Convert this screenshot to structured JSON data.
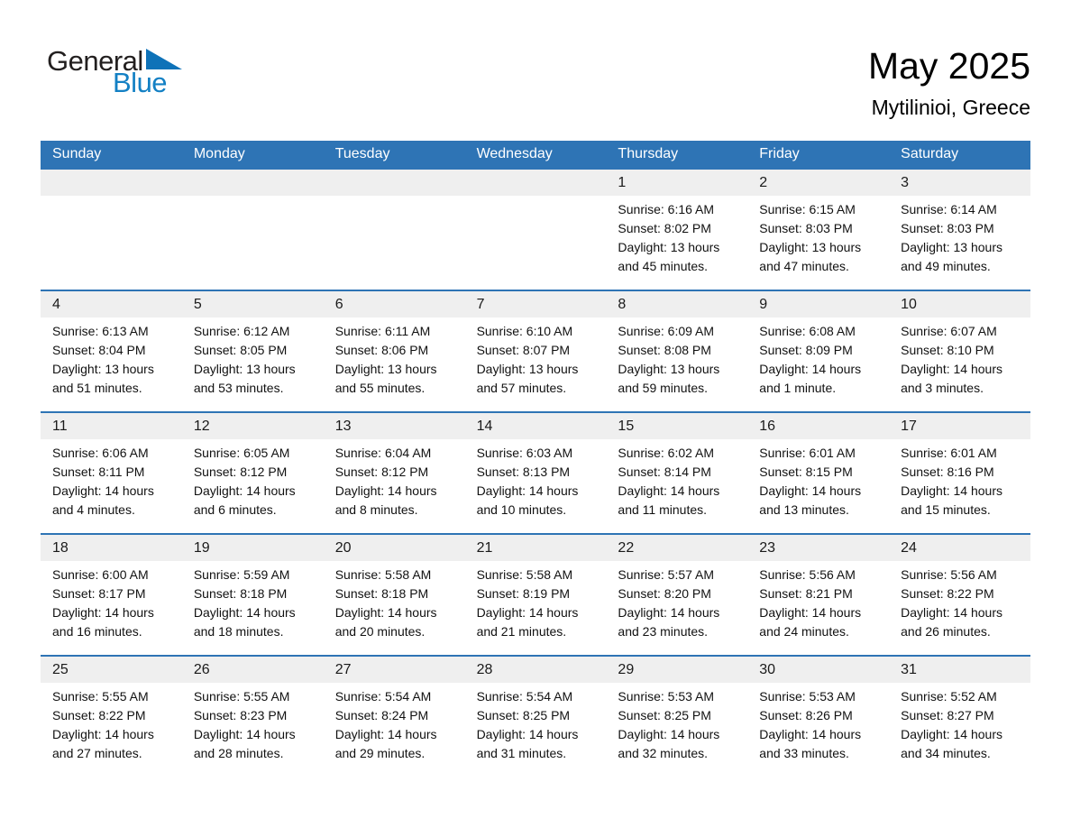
{
  "logo": {
    "text_black": "General",
    "text_blue": "Blue"
  },
  "title": "May 2025",
  "subtitle": "Mytilinioi, Greece",
  "weekdays": [
    "Sunday",
    "Monday",
    "Tuesday",
    "Wednesday",
    "Thursday",
    "Friday",
    "Saturday"
  ],
  "colors": {
    "header_blue": "#2E74B5",
    "row_line_blue": "#2E74B5",
    "band_gray": "#EFEFEF",
    "logo_blue": "#1380C4",
    "logo_dark": "#221F1F"
  },
  "weeks": [
    [
      null,
      null,
      null,
      null,
      {
        "day": "1",
        "sunrise": "Sunrise: 6:16 AM",
        "sunset": "Sunset: 8:02 PM",
        "daylight1": "Daylight: 13 hours",
        "daylight2": "and 45 minutes."
      },
      {
        "day": "2",
        "sunrise": "Sunrise: 6:15 AM",
        "sunset": "Sunset: 8:03 PM",
        "daylight1": "Daylight: 13 hours",
        "daylight2": "and 47 minutes."
      },
      {
        "day": "3",
        "sunrise": "Sunrise: 6:14 AM",
        "sunset": "Sunset: 8:03 PM",
        "daylight1": "Daylight: 13 hours",
        "daylight2": "and 49 minutes."
      }
    ],
    [
      {
        "day": "4",
        "sunrise": "Sunrise: 6:13 AM",
        "sunset": "Sunset: 8:04 PM",
        "daylight1": "Daylight: 13 hours",
        "daylight2": "and 51 minutes."
      },
      {
        "day": "5",
        "sunrise": "Sunrise: 6:12 AM",
        "sunset": "Sunset: 8:05 PM",
        "daylight1": "Daylight: 13 hours",
        "daylight2": "and 53 minutes."
      },
      {
        "day": "6",
        "sunrise": "Sunrise: 6:11 AM",
        "sunset": "Sunset: 8:06 PM",
        "daylight1": "Daylight: 13 hours",
        "daylight2": "and 55 minutes."
      },
      {
        "day": "7",
        "sunrise": "Sunrise: 6:10 AM",
        "sunset": "Sunset: 8:07 PM",
        "daylight1": "Daylight: 13 hours",
        "daylight2": "and 57 minutes."
      },
      {
        "day": "8",
        "sunrise": "Sunrise: 6:09 AM",
        "sunset": "Sunset: 8:08 PM",
        "daylight1": "Daylight: 13 hours",
        "daylight2": "and 59 minutes."
      },
      {
        "day": "9",
        "sunrise": "Sunrise: 6:08 AM",
        "sunset": "Sunset: 8:09 PM",
        "daylight1": "Daylight: 14 hours",
        "daylight2": "and 1 minute."
      },
      {
        "day": "10",
        "sunrise": "Sunrise: 6:07 AM",
        "sunset": "Sunset: 8:10 PM",
        "daylight1": "Daylight: 14 hours",
        "daylight2": "and 3 minutes."
      }
    ],
    [
      {
        "day": "11",
        "sunrise": "Sunrise: 6:06 AM",
        "sunset": "Sunset: 8:11 PM",
        "daylight1": "Daylight: 14 hours",
        "daylight2": "and 4 minutes."
      },
      {
        "day": "12",
        "sunrise": "Sunrise: 6:05 AM",
        "sunset": "Sunset: 8:12 PM",
        "daylight1": "Daylight: 14 hours",
        "daylight2": "and 6 minutes."
      },
      {
        "day": "13",
        "sunrise": "Sunrise: 6:04 AM",
        "sunset": "Sunset: 8:12 PM",
        "daylight1": "Daylight: 14 hours",
        "daylight2": "and 8 minutes."
      },
      {
        "day": "14",
        "sunrise": "Sunrise: 6:03 AM",
        "sunset": "Sunset: 8:13 PM",
        "daylight1": "Daylight: 14 hours",
        "daylight2": "and 10 minutes."
      },
      {
        "day": "15",
        "sunrise": "Sunrise: 6:02 AM",
        "sunset": "Sunset: 8:14 PM",
        "daylight1": "Daylight: 14 hours",
        "daylight2": "and 11 minutes."
      },
      {
        "day": "16",
        "sunrise": "Sunrise: 6:01 AM",
        "sunset": "Sunset: 8:15 PM",
        "daylight1": "Daylight: 14 hours",
        "daylight2": "and 13 minutes."
      },
      {
        "day": "17",
        "sunrise": "Sunrise: 6:01 AM",
        "sunset": "Sunset: 8:16 PM",
        "daylight1": "Daylight: 14 hours",
        "daylight2": "and 15 minutes."
      }
    ],
    [
      {
        "day": "18",
        "sunrise": "Sunrise: 6:00 AM",
        "sunset": "Sunset: 8:17 PM",
        "daylight1": "Daylight: 14 hours",
        "daylight2": "and 16 minutes."
      },
      {
        "day": "19",
        "sunrise": "Sunrise: 5:59 AM",
        "sunset": "Sunset: 8:18 PM",
        "daylight1": "Daylight: 14 hours",
        "daylight2": "and 18 minutes."
      },
      {
        "day": "20",
        "sunrise": "Sunrise: 5:58 AM",
        "sunset": "Sunset: 8:18 PM",
        "daylight1": "Daylight: 14 hours",
        "daylight2": "and 20 minutes."
      },
      {
        "day": "21",
        "sunrise": "Sunrise: 5:58 AM",
        "sunset": "Sunset: 8:19 PM",
        "daylight1": "Daylight: 14 hours",
        "daylight2": "and 21 minutes."
      },
      {
        "day": "22",
        "sunrise": "Sunrise: 5:57 AM",
        "sunset": "Sunset: 8:20 PM",
        "daylight1": "Daylight: 14 hours",
        "daylight2": "and 23 minutes."
      },
      {
        "day": "23",
        "sunrise": "Sunrise: 5:56 AM",
        "sunset": "Sunset: 8:21 PM",
        "daylight1": "Daylight: 14 hours",
        "daylight2": "and 24 minutes."
      },
      {
        "day": "24",
        "sunrise": "Sunrise: 5:56 AM",
        "sunset": "Sunset: 8:22 PM",
        "daylight1": "Daylight: 14 hours",
        "daylight2": "and 26 minutes."
      }
    ],
    [
      {
        "day": "25",
        "sunrise": "Sunrise: 5:55 AM",
        "sunset": "Sunset: 8:22 PM",
        "daylight1": "Daylight: 14 hours",
        "daylight2": "and 27 minutes."
      },
      {
        "day": "26",
        "sunrise": "Sunrise: 5:55 AM",
        "sunset": "Sunset: 8:23 PM",
        "daylight1": "Daylight: 14 hours",
        "daylight2": "and 28 minutes."
      },
      {
        "day": "27",
        "sunrise": "Sunrise: 5:54 AM",
        "sunset": "Sunset: 8:24 PM",
        "daylight1": "Daylight: 14 hours",
        "daylight2": "and 29 minutes."
      },
      {
        "day": "28",
        "sunrise": "Sunrise: 5:54 AM",
        "sunset": "Sunset: 8:25 PM",
        "daylight1": "Daylight: 14 hours",
        "daylight2": "and 31 minutes."
      },
      {
        "day": "29",
        "sunrise": "Sunrise: 5:53 AM",
        "sunset": "Sunset: 8:25 PM",
        "daylight1": "Daylight: 14 hours",
        "daylight2": "and 32 minutes."
      },
      {
        "day": "30",
        "sunrise": "Sunrise: 5:53 AM",
        "sunset": "Sunset: 8:26 PM",
        "daylight1": "Daylight: 14 hours",
        "daylight2": "and 33 minutes."
      },
      {
        "day": "31",
        "sunrise": "Sunrise: 5:52 AM",
        "sunset": "Sunset: 8:27 PM",
        "daylight1": "Daylight: 14 hours",
        "daylight2": "and 34 minutes."
      }
    ]
  ]
}
